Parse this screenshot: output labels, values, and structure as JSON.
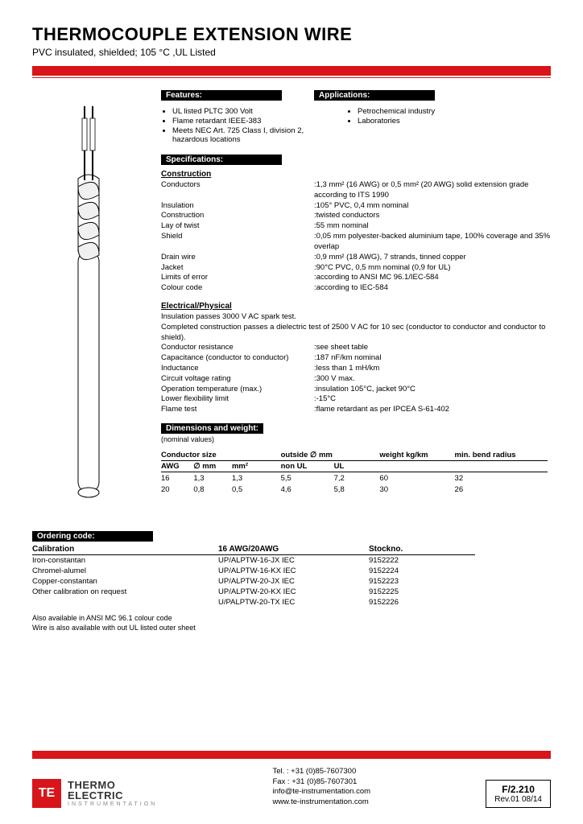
{
  "header": {
    "title": "THERMOCOUPLE EXTENSION WIRE",
    "subtitle": "PVC insulated, shielded; 105 °C ,UL Listed"
  },
  "sections": {
    "features_label": "Features:",
    "applications_label": "Applications:",
    "specifications_label": "Specifications:",
    "dimensions_label": "Dimensions and weight:",
    "ordering_label": "Ordering code:"
  },
  "features": [
    "UL listed PLTC 300 Volt",
    "Flame retardant IEEE-383",
    "Meets NEC Art. 725 Class I, division 2, hazardous locations"
  ],
  "applications": [
    "Petrochemical industry",
    "Laboratories"
  ],
  "construction_head": "Construction",
  "construction": [
    {
      "k": "Conductors",
      "v": ":1,3 mm² (16 AWG) or 0,5 mm² (20 AWG) solid extension grade according to ITS 1990"
    },
    {
      "k": "Insulation",
      "v": ":105° PVC, 0,4 mm nominal"
    },
    {
      "k": "Construction",
      "v": ":twisted conductors"
    },
    {
      "k": "Lay of twist",
      "v": ":55 mm nominal"
    },
    {
      "k": "Shield",
      "v": ":0,05 mm polyester-backed aluminium tape, 100% coverage and 35% overlap"
    },
    {
      "k": "Drain wire",
      "v": ":0,9 mm² (18 AWG), 7 strands, tinned copper"
    },
    {
      "k": "Jacket",
      "v": ":90°C PVC, 0,5 mm nominal (0,9 for UL)"
    },
    {
      "k": "Limits of error",
      "v": ":according to ANSI MC 96.1/IEC-584"
    },
    {
      "k": "Colour code",
      "v": ":according to IEC-584"
    }
  ],
  "electrical_head": "Electrical/Physical",
  "electrical_notes": [
    "Insulation passes 3000 V AC spark test.",
    "Completed construction passes a dielectric test of 2500 V AC for 10 sec (conductor to conductor and conductor to shield)."
  ],
  "electrical": [
    {
      "k": "Conductor resistance",
      "v": ":see sheet table"
    },
    {
      "k": "Capacitance (conductor to conductor)",
      "v": ":187 nF/km nominal"
    },
    {
      "k": "Inductance",
      "v": ":less than 1 mH/km"
    },
    {
      "k": "Circuit voltage rating",
      "v": ":300 V max."
    },
    {
      "k": "Operation temperature (max.)",
      "v": ":insulation 105°C, jacket 90°C"
    },
    {
      "k": "Lower flexibility limit",
      "v": ":-15°C"
    },
    {
      "k": "Flame test",
      "v": ":flame retardant as per IPCEA S-61-402"
    }
  ],
  "dim_nominal": "(nominal values)",
  "dim_headers": {
    "cond_size": "Conductor size",
    "outside": "outside ∅ mm",
    "awg": "AWG",
    "dia": "∅ mm",
    "mm2": "mm²",
    "nonul": "non UL",
    "ul": "UL",
    "weight": "weight kg/km",
    "bend": "min. bend radius"
  },
  "dim_rows": [
    {
      "awg": "16",
      "dia": "1,3",
      "mm2": "1,3",
      "nonul": "5,5",
      "ul": "7,2",
      "weight": "60",
      "bend": "32"
    },
    {
      "awg": "20",
      "dia": "0,8",
      "mm2": "0,5",
      "nonul": "4,6",
      "ul": "5,8",
      "weight": "30",
      "bend": "26"
    }
  ],
  "ord_headers": {
    "cal": "Calibration",
    "awg": "16 AWG/20AWG",
    "stock": "Stockno."
  },
  "ord_cal": [
    "Iron-constantan",
    "Chromel-alumel",
    "Copper-constantan",
    "Other calibration on request"
  ],
  "ord_codes": [
    {
      "c": "UP/ALPTW-16-JX IEC",
      "s": "9152222"
    },
    {
      "c": "UP/ALPTW-16-KX IEC",
      "s": "9152224"
    },
    {
      "c": "UP/ALPTW-20-JX IEC",
      "s": "9152223"
    },
    {
      "c": "UP/ALPTW-20-KX IEC",
      "s": "9152225"
    },
    {
      "c": "U/PALPTW-20-TX IEC",
      "s": "9152226"
    }
  ],
  "footnotes": [
    "Also available in ANSI MC 96.1 colour code",
    "Wire is also available with out UL listed outer sheet"
  ],
  "footer": {
    "company1": "THERMO",
    "company2": "ELECTRIC",
    "company3": "INSTRUMENTATION",
    "tel": "Tel. : +31 (0)85-7607300",
    "fax": "Fax : +31 (0)85-7607301",
    "email": "info@te-instrumentation.com",
    "web": "www.te-instrumentation.com",
    "docnum": "F/2.210",
    "rev": "Rev.01   08/14"
  }
}
